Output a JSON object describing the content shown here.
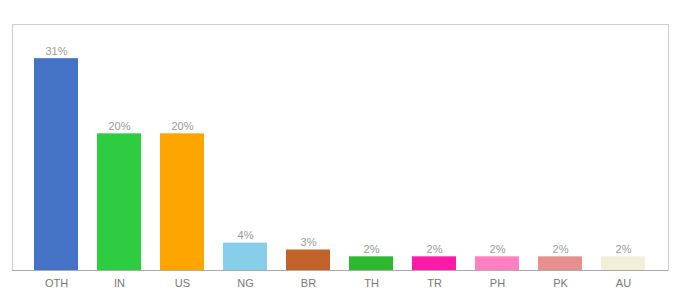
{
  "chart_data": {
    "type": "bar",
    "categories": [
      "OTH",
      "IN",
      "US",
      "NG",
      "BR",
      "TH",
      "TR",
      "PH",
      "PK",
      "AU"
    ],
    "values": [
      31,
      20,
      20,
      4,
      3,
      2,
      2,
      2,
      2,
      2
    ],
    "value_labels": [
      "31%",
      "20%",
      "20%",
      "4%",
      "3%",
      "2%",
      "2%",
      "2%",
      "2%",
      "2%"
    ],
    "colors": [
      "#4472c4",
      "#2ecc40",
      "#ffa500",
      "#87ceeb",
      "#c0622a",
      "#2db82d",
      "#ff1aaa",
      "#ff80c0",
      "#e89090",
      "#f0f0d8"
    ],
    "ylim": [
      0,
      36
    ],
    "data_labels": true,
    "tick_labels": "x",
    "grid": false
  }
}
